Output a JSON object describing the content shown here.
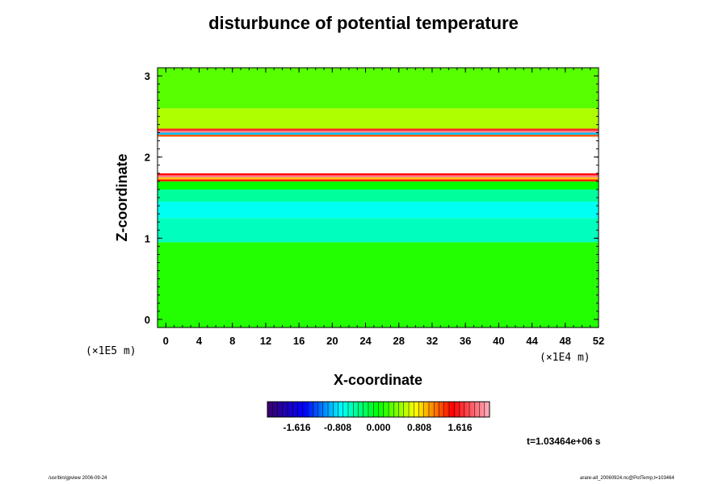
{
  "chart_data": {
    "type": "heatmap",
    "title": "disturbunce of potential temperature",
    "xlabel": "X-coordinate",
    "ylabel": "Z-coordinate",
    "x_unit": "(×1E4 m)",
    "z_unit": "(×1E5 m)",
    "xlim": [
      -1,
      52
    ],
    "ylim": [
      -0.1,
      3.1
    ],
    "x_ticks": [
      "0",
      "4",
      "8",
      "12",
      "16",
      "20",
      "24",
      "28",
      "32",
      "36",
      "40",
      "44",
      "48",
      "52"
    ],
    "x_tick_values": [
      0,
      4,
      8,
      12,
      16,
      20,
      24,
      28,
      32,
      36,
      40,
      44,
      48,
      52
    ],
    "y_ticks": [
      "0",
      "1",
      "2",
      "3"
    ],
    "y_tick_values": [
      0,
      1,
      2,
      3
    ],
    "colorbar": {
      "ticks": [
        "-1.616",
        "-0.808",
        "0.000",
        "0.808",
        "1.616"
      ],
      "tick_values": [
        -1.616,
        -0.808,
        0.0,
        0.808,
        1.616
      ],
      "range": [
        -2.2,
        2.2
      ],
      "colors": [
        "#3b006b",
        "#0000ff",
        "#00ffff",
        "#00ff00",
        "#ffff00",
        "#ff0000",
        "#ffb0c0"
      ]
    },
    "time_label": "t=1.03464e+06 s",
    "layers": [
      {
        "z_range": [
          -0.1,
          0.95
        ],
        "value": 0.1
      },
      {
        "z_range": [
          0.95,
          1.25
        ],
        "value": -0.55
      },
      {
        "z_range": [
          1.25,
          1.45
        ],
        "value": -0.7
      },
      {
        "z_range": [
          1.45,
          1.6
        ],
        "value": -0.45
      },
      {
        "z_range": [
          1.6,
          1.7
        ],
        "value": 0.0
      },
      {
        "z_range": [
          1.7,
          2.35
        ],
        "value": 9.0
      },
      {
        "z_range": [
          2.35,
          2.6
        ],
        "value": 0.5
      },
      {
        "z_range": [
          2.6,
          3.1
        ],
        "value": 0.25
      }
    ]
  },
  "footer": {
    "left": "/usr/bin/gpview 2006-09-24",
    "right": "arare-all_20060924.nc@PotTemp,t=103464"
  }
}
